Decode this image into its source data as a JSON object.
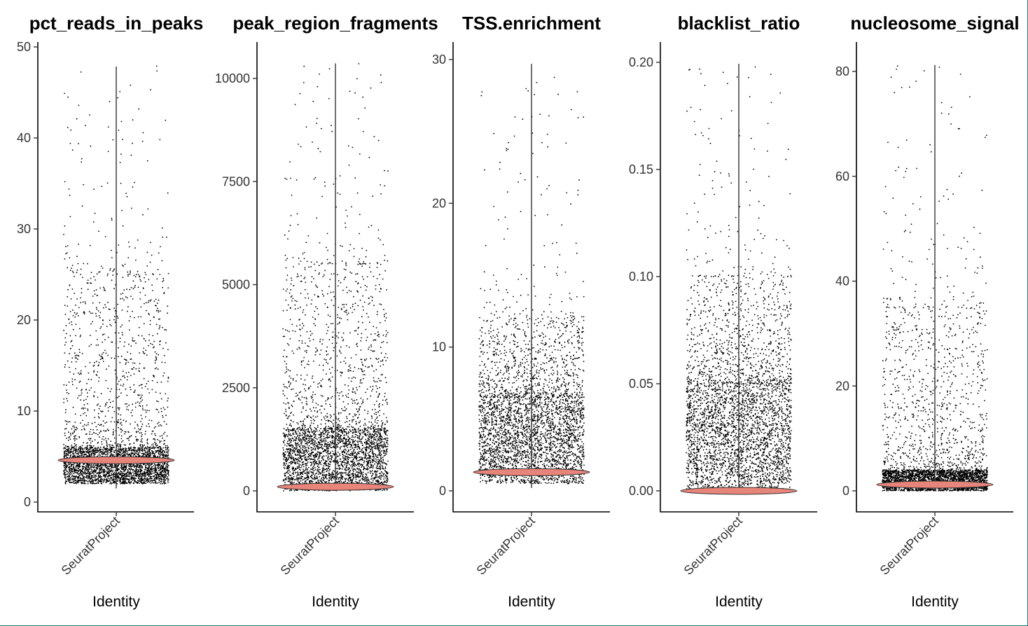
{
  "chart_data": [
    {
      "type": "violin",
      "title": "pct_reads_in_peaks",
      "categories": [
        "SeuratProject"
      ],
      "xlabel": "Identity",
      "ylabel": "",
      "ylim": [
        0,
        50
      ],
      "yticks": [
        0,
        10,
        20,
        30,
        40,
        50
      ],
      "ytick_labels": [
        "0",
        "10",
        "20",
        "30",
        "40",
        "50"
      ],
      "distribution": {
        "min": 1.5,
        "median": 5,
        "max": 48,
        "dense_core": [
          2,
          6
        ],
        "spread_band": [
          6,
          25
        ]
      },
      "violin_widest_at": 4.6
    },
    {
      "type": "violin",
      "title": "peak_region_fragments",
      "categories": [
        "SeuratProject"
      ],
      "xlabel": "Identity",
      "ylabel": "",
      "ylim": [
        0,
        10500
      ],
      "yticks": [
        0,
        2500,
        5000,
        7500,
        10000
      ],
      "ytick_labels": [
        "0",
        "2500",
        "5000",
        "7500",
        "10000"
      ],
      "distribution": {
        "min": 0,
        "median": 800,
        "max": 10400,
        "dense_core": [
          0,
          1500
        ],
        "spread_band": [
          1500,
          5500
        ]
      },
      "violin_widest_at": 100
    },
    {
      "type": "violin",
      "title": "TSS.enrichment",
      "categories": [
        "SeuratProject"
      ],
      "xlabel": "Identity",
      "ylabel": "",
      "ylim": [
        0,
        30.5
      ],
      "yticks": [
        0,
        10,
        20,
        30
      ],
      "ytick_labels": [
        "0",
        "10",
        "20",
        "30"
      ],
      "distribution": {
        "min": 0.2,
        "median": 2.5,
        "max": 29.8,
        "dense_core": [
          0.5,
          6.5
        ],
        "spread_band": [
          6.5,
          12
        ]
      },
      "violin_widest_at": 1.3
    },
    {
      "type": "violin",
      "title": "blacklist_ratio",
      "categories": [
        "SeuratProject"
      ],
      "xlabel": "Identity",
      "ylabel": "",
      "ylim": [
        0,
        0.205
      ],
      "yticks": [
        0.0,
        0.05,
        0.1,
        0.15,
        0.2
      ],
      "ytick_labels": [
        "0.00",
        "0.05",
        "0.10",
        "0.15",
        "0.20"
      ],
      "distribution": {
        "min": 0,
        "median": 0.02,
        "max": 0.2,
        "dense_core": [
          0,
          0.05
        ],
        "spread_band": [
          0.05,
          0.1
        ]
      },
      "violin_widest_at": 0.0
    },
    {
      "type": "violin",
      "title": "nucleosome_signal",
      "categories": [
        "SeuratProject"
      ],
      "xlabel": "Identity",
      "ylabel": "",
      "ylim": [
        0,
        85
      ],
      "yticks": [
        0,
        20,
        40,
        60,
        80
      ],
      "ytick_labels": [
        "0",
        "20",
        "40",
        "60",
        "80"
      ],
      "distribution": {
        "min": 0,
        "median": 1,
        "max": 81.5,
        "dense_core": [
          0,
          4
        ],
        "spread_band": [
          4,
          35
        ]
      },
      "violin_widest_at": 1.2
    }
  ],
  "colors": {
    "violin_fill": "#e8857a",
    "violin_stroke": "#333333",
    "points": "#000000",
    "axis": "#000000"
  }
}
